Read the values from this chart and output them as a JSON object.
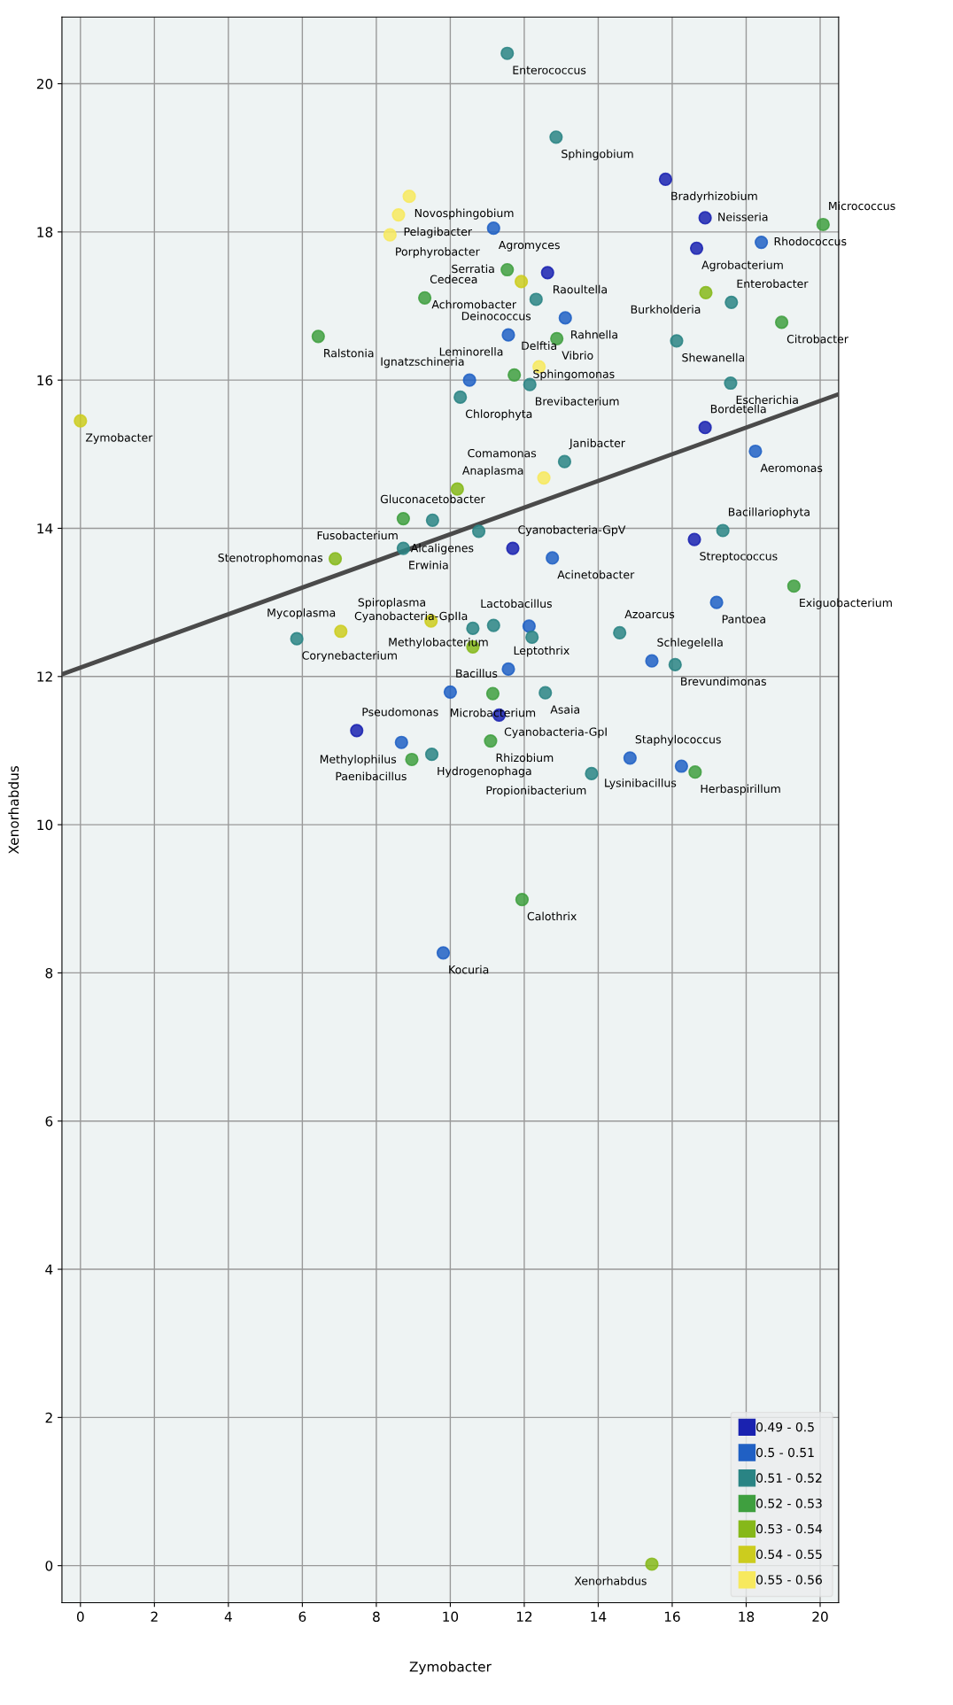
{
  "chart_data": {
    "type": "scatter",
    "xlabel": "Zymobacter",
    "ylabel": "Xenorhabdus",
    "xlim": [
      -0.5,
      20.5
    ],
    "ylim": [
      -0.5,
      20.9
    ],
    "xticks": [
      0,
      2,
      4,
      6,
      8,
      10,
      12,
      14,
      16,
      18,
      20
    ],
    "yticks": [
      0,
      2,
      4,
      6,
      8,
      10,
      12,
      14,
      16,
      18,
      20
    ],
    "grid": true,
    "legend": "bottom right",
    "marker": "circle",
    "series": [
      {
        "name": "0.49 - 0.5",
        "color": "#1a22b0",
        "x": [
          15.82,
          16.89,
          16.66,
          16.89,
          16.6,
          7.47,
          11.69,
          11.32,
          12.63
        ],
        "values": [
          18.71,
          18.19,
          17.78,
          15.36,
          13.85,
          11.27,
          13.73,
          11.48,
          17.45
        ]
      },
      {
        "name": "0.5 - 0.51",
        "color": "#2060c4",
        "x": [
          11.17,
          11.57,
          10.52,
          18.41,
          18.25,
          17.2,
          15.45,
          14.86,
          16.25,
          12.76,
          10.0,
          9.81,
          8.68,
          11.57,
          12.13,
          13.11
        ],
        "values": [
          18.05,
          16.61,
          16.0,
          17.86,
          15.04,
          13.0,
          12.21,
          10.9,
          10.79,
          13.6,
          11.79,
          8.27,
          11.11,
          12.1,
          12.68,
          16.84
        ]
      },
      {
        "name": "0.51 - 0.52",
        "color": "#2a8484",
        "x": [
          11.54,
          12.86,
          12.32,
          12.15,
          10.27,
          17.6,
          16.12,
          17.58,
          13.09,
          17.37,
          14.58,
          16.08,
          13.82,
          8.73,
          9.52,
          10.77,
          5.85,
          10.61,
          11.17,
          12.57,
          9.5,
          12.21
        ],
        "values": [
          20.41,
          19.28,
          17.09,
          15.94,
          15.77,
          17.05,
          16.53,
          15.96,
          14.9,
          13.97,
          12.59,
          12.16,
          10.69,
          13.73,
          14.11,
          13.96,
          12.51,
          12.65,
          12.69,
          11.78,
          10.95,
          12.53
        ]
      },
      {
        "name": "0.52 - 0.53",
        "color": "#3f9f3f",
        "x": [
          6.43,
          9.31,
          11.54,
          12.88,
          11.73,
          18.96,
          20.08,
          19.29,
          16.62,
          8.73,
          11.15,
          11.09,
          8.96,
          11.94
        ],
        "values": [
          16.59,
          17.11,
          17.49,
          16.56,
          16.07,
          16.78,
          18.1,
          13.22,
          10.71,
          14.13,
          11.77,
          11.13,
          10.88,
          8.99
        ]
      },
      {
        "name": "0.53 - 0.54",
        "color": "#86b81a",
        "x": [
          16.91,
          10.19,
          6.89,
          10.61,
          15.45
        ],
        "values": [
          17.18,
          14.53,
          13.59,
          12.4,
          0.02
        ]
      },
      {
        "name": "0.54 - 0.55",
        "color": "#cccc1e",
        "x": [
          0.0,
          7.04,
          9.48,
          11.92
        ],
        "values": [
          15.45,
          12.61,
          12.75,
          17.33
        ]
      },
      {
        "name": "0.55 - 0.56",
        "color": "#f7e95e",
        "x": [
          8.37,
          8.6,
          8.89,
          12.4,
          12.53
        ],
        "values": [
          17.96,
          18.23,
          18.48,
          16.18,
          14.68
        ]
      },
      {
        "type": "line",
        "marker": "none",
        "color": "#4a4a4a",
        "x": [
          -0.5,
          20.5
        ],
        "values": [
          12.03,
          15.81
        ]
      }
    ],
    "annotations": [
      {
        "text": "Bradyrhizobium",
        "x": 15.82,
        "y": 18.71
      },
      {
        "text": "Neisseria",
        "x": 16.89,
        "y": 18.19
      },
      {
        "text": "Agrobacterium",
        "x": 16.66,
        "y": 17.78
      },
      {
        "text": "Bordetella",
        "x": 16.89,
        "y": 15.36
      },
      {
        "text": "Streptococcus",
        "x": 16.6,
        "y": 13.85
      },
      {
        "text": "Pseudomonas",
        "x": 7.47,
        "y": 11.27
      },
      {
        "text": "Cyanobacteria-GpV",
        "x": 11.69,
        "y": 13.73
      },
      {
        "text": "Cyanobacteria-GpI",
        "x": 11.32,
        "y": 11.48
      },
      {
        "text": "Raoultella",
        "x": 12.63,
        "y": 17.45
      },
      {
        "text": "Agromyces",
        "x": 11.17,
        "y": 18.05
      },
      {
        "text": "Leminorella",
        "x": 11.57,
        "y": 16.61
      },
      {
        "text": "Ignatzschineria",
        "x": 10.52,
        "y": 16.0
      },
      {
        "text": "Rhodococcus",
        "x": 18.41,
        "y": 17.86
      },
      {
        "text": "Aeromonas",
        "x": 18.25,
        "y": 15.04
      },
      {
        "text": "Pantoea",
        "x": 17.2,
        "y": 13.0
      },
      {
        "text": "Schlegelella",
        "x": 15.45,
        "y": 12.21
      },
      {
        "text": "Staphylococcus",
        "x": 14.86,
        "y": 10.9
      },
      {
        "text": "Lysinibacillus",
        "x": 16.25,
        "y": 10.79
      },
      {
        "text": "Acinetobacter",
        "x": 12.76,
        "y": 13.6
      },
      {
        "text": "Bacillus",
        "x": 10.0,
        "y": 11.79
      },
      {
        "text": "Kocuria",
        "x": 9.81,
        "y": 8.27
      },
      {
        "text": "Methylophilus",
        "x": 8.68,
        "y": 11.11
      },
      {
        "text": "Leptothrix",
        "x": 11.57,
        "y": 12.1
      },
      {
        "text": "Rahnella",
        "x": 13.11,
        "y": 16.84
      },
      {
        "text": "Enterococcus",
        "x": 11.54,
        "y": 20.41
      },
      {
        "text": "Sphingobium",
        "x": 12.86,
        "y": 19.28
      },
      {
        "text": "Deinococcus",
        "x": 12.32,
        "y": 17.09
      },
      {
        "text": "Brevibacterium",
        "x": 12.15,
        "y": 15.94
      },
      {
        "text": "Chlorophyta",
        "x": 10.27,
        "y": 15.77
      },
      {
        "text": "Enterobacter",
        "x": 17.6,
        "y": 17.05
      },
      {
        "text": "Shewanella",
        "x": 16.12,
        "y": 16.53
      },
      {
        "text": "Escherichia",
        "x": 17.58,
        "y": 15.96
      },
      {
        "text": "Janibacter",
        "x": 13.09,
        "y": 14.9
      },
      {
        "text": "Bacillariophyta",
        "x": 17.37,
        "y": 13.97
      },
      {
        "text": "Azoarcus",
        "x": 14.58,
        "y": 12.59
      },
      {
        "text": "Brevundimonas",
        "x": 16.08,
        "y": 12.16
      },
      {
        "text": "Propionibacterium",
        "x": 13.82,
        "y": 10.69
      },
      {
        "text": "Erwinia",
        "x": 8.73,
        "y": 13.73
      },
      {
        "text": "Gluconacetobacter",
        "x": 9.52,
        "y": 14.11
      },
      {
        "text": "Alcaligenes",
        "x": 10.77,
        "y": 13.96
      },
      {
        "text": "Corynebacterium",
        "x": 5.85,
        "y": 12.51
      },
      {
        "text": "Lactobacillus",
        "x": 10.61,
        "y": 12.65
      },
      {
        "text": "Methylobacterium",
        "x": 11.17,
        "y": 12.69
      },
      {
        "text": "Asaia",
        "x": 12.57,
        "y": 11.78
      },
      {
        "text": "Hydrogenophaga",
        "x": 9.5,
        "y": 10.95
      },
      {
        "text": "Ralstonia",
        "x": 6.43,
        "y": 16.59
      },
      {
        "text": "Cedecea",
        "x": 9.31,
        "y": 17.11
      },
      {
        "text": "Serratia",
        "x": 11.54,
        "y": 17.49
      },
      {
        "text": "Vibrio",
        "x": 12.88,
        "y": 16.56
      },
      {
        "text": "Sphingomonas",
        "x": 11.73,
        "y": 16.07
      },
      {
        "text": "Citrobacter",
        "x": 18.96,
        "y": 16.78
      },
      {
        "text": "Micrococcus",
        "x": 20.08,
        "y": 18.1
      },
      {
        "text": "Exiguobacterium",
        "x": 19.29,
        "y": 13.22
      },
      {
        "text": "Herbaspirillum",
        "x": 16.62,
        "y": 10.71
      },
      {
        "text": "Fusobacterium",
        "x": 8.73,
        "y": 14.13
      },
      {
        "text": "Microbacterium",
        "x": 11.15,
        "y": 11.77
      },
      {
        "text": "Rhizobium",
        "x": 11.09,
        "y": 11.13
      },
      {
        "text": "Paenibacillus",
        "x": 8.96,
        "y": 10.88
      },
      {
        "text": "Calothrix",
        "x": 11.94,
        "y": 8.99
      },
      {
        "text": "Burkholderia",
        "x": 16.91,
        "y": 17.18
      },
      {
        "text": "Anaplasma",
        "x": 10.19,
        "y": 14.53
      },
      {
        "text": "Stenotrophomonas",
        "x": 6.89,
        "y": 13.59
      },
      {
        "text": "Cyanobacteria-GpIIa",
        "x": 10.61,
        "y": 12.4
      },
      {
        "text": "Xenorhabdus",
        "x": 15.45,
        "y": 0.02
      },
      {
        "text": "Zymobacter",
        "x": 0.0,
        "y": 15.45
      },
      {
        "text": "Mycoplasma",
        "x": 7.04,
        "y": 12.61
      },
      {
        "text": "Spiroplasma",
        "x": 9.48,
        "y": 12.75
      },
      {
        "text": "Achromobacter",
        "x": 11.92,
        "y": 17.33
      },
      {
        "text": "Porphyrobacter",
        "x": 8.37,
        "y": 17.96
      },
      {
        "text": "Pelagibacter",
        "x": 8.6,
        "y": 18.23
      },
      {
        "text": "Novosphingobium",
        "x": 8.89,
        "y": 18.48
      },
      {
        "text": "Delftia",
        "x": 12.4,
        "y": 16.18
      },
      {
        "text": "Comamonas",
        "x": 12.53,
        "y": 14.68
      }
    ]
  }
}
